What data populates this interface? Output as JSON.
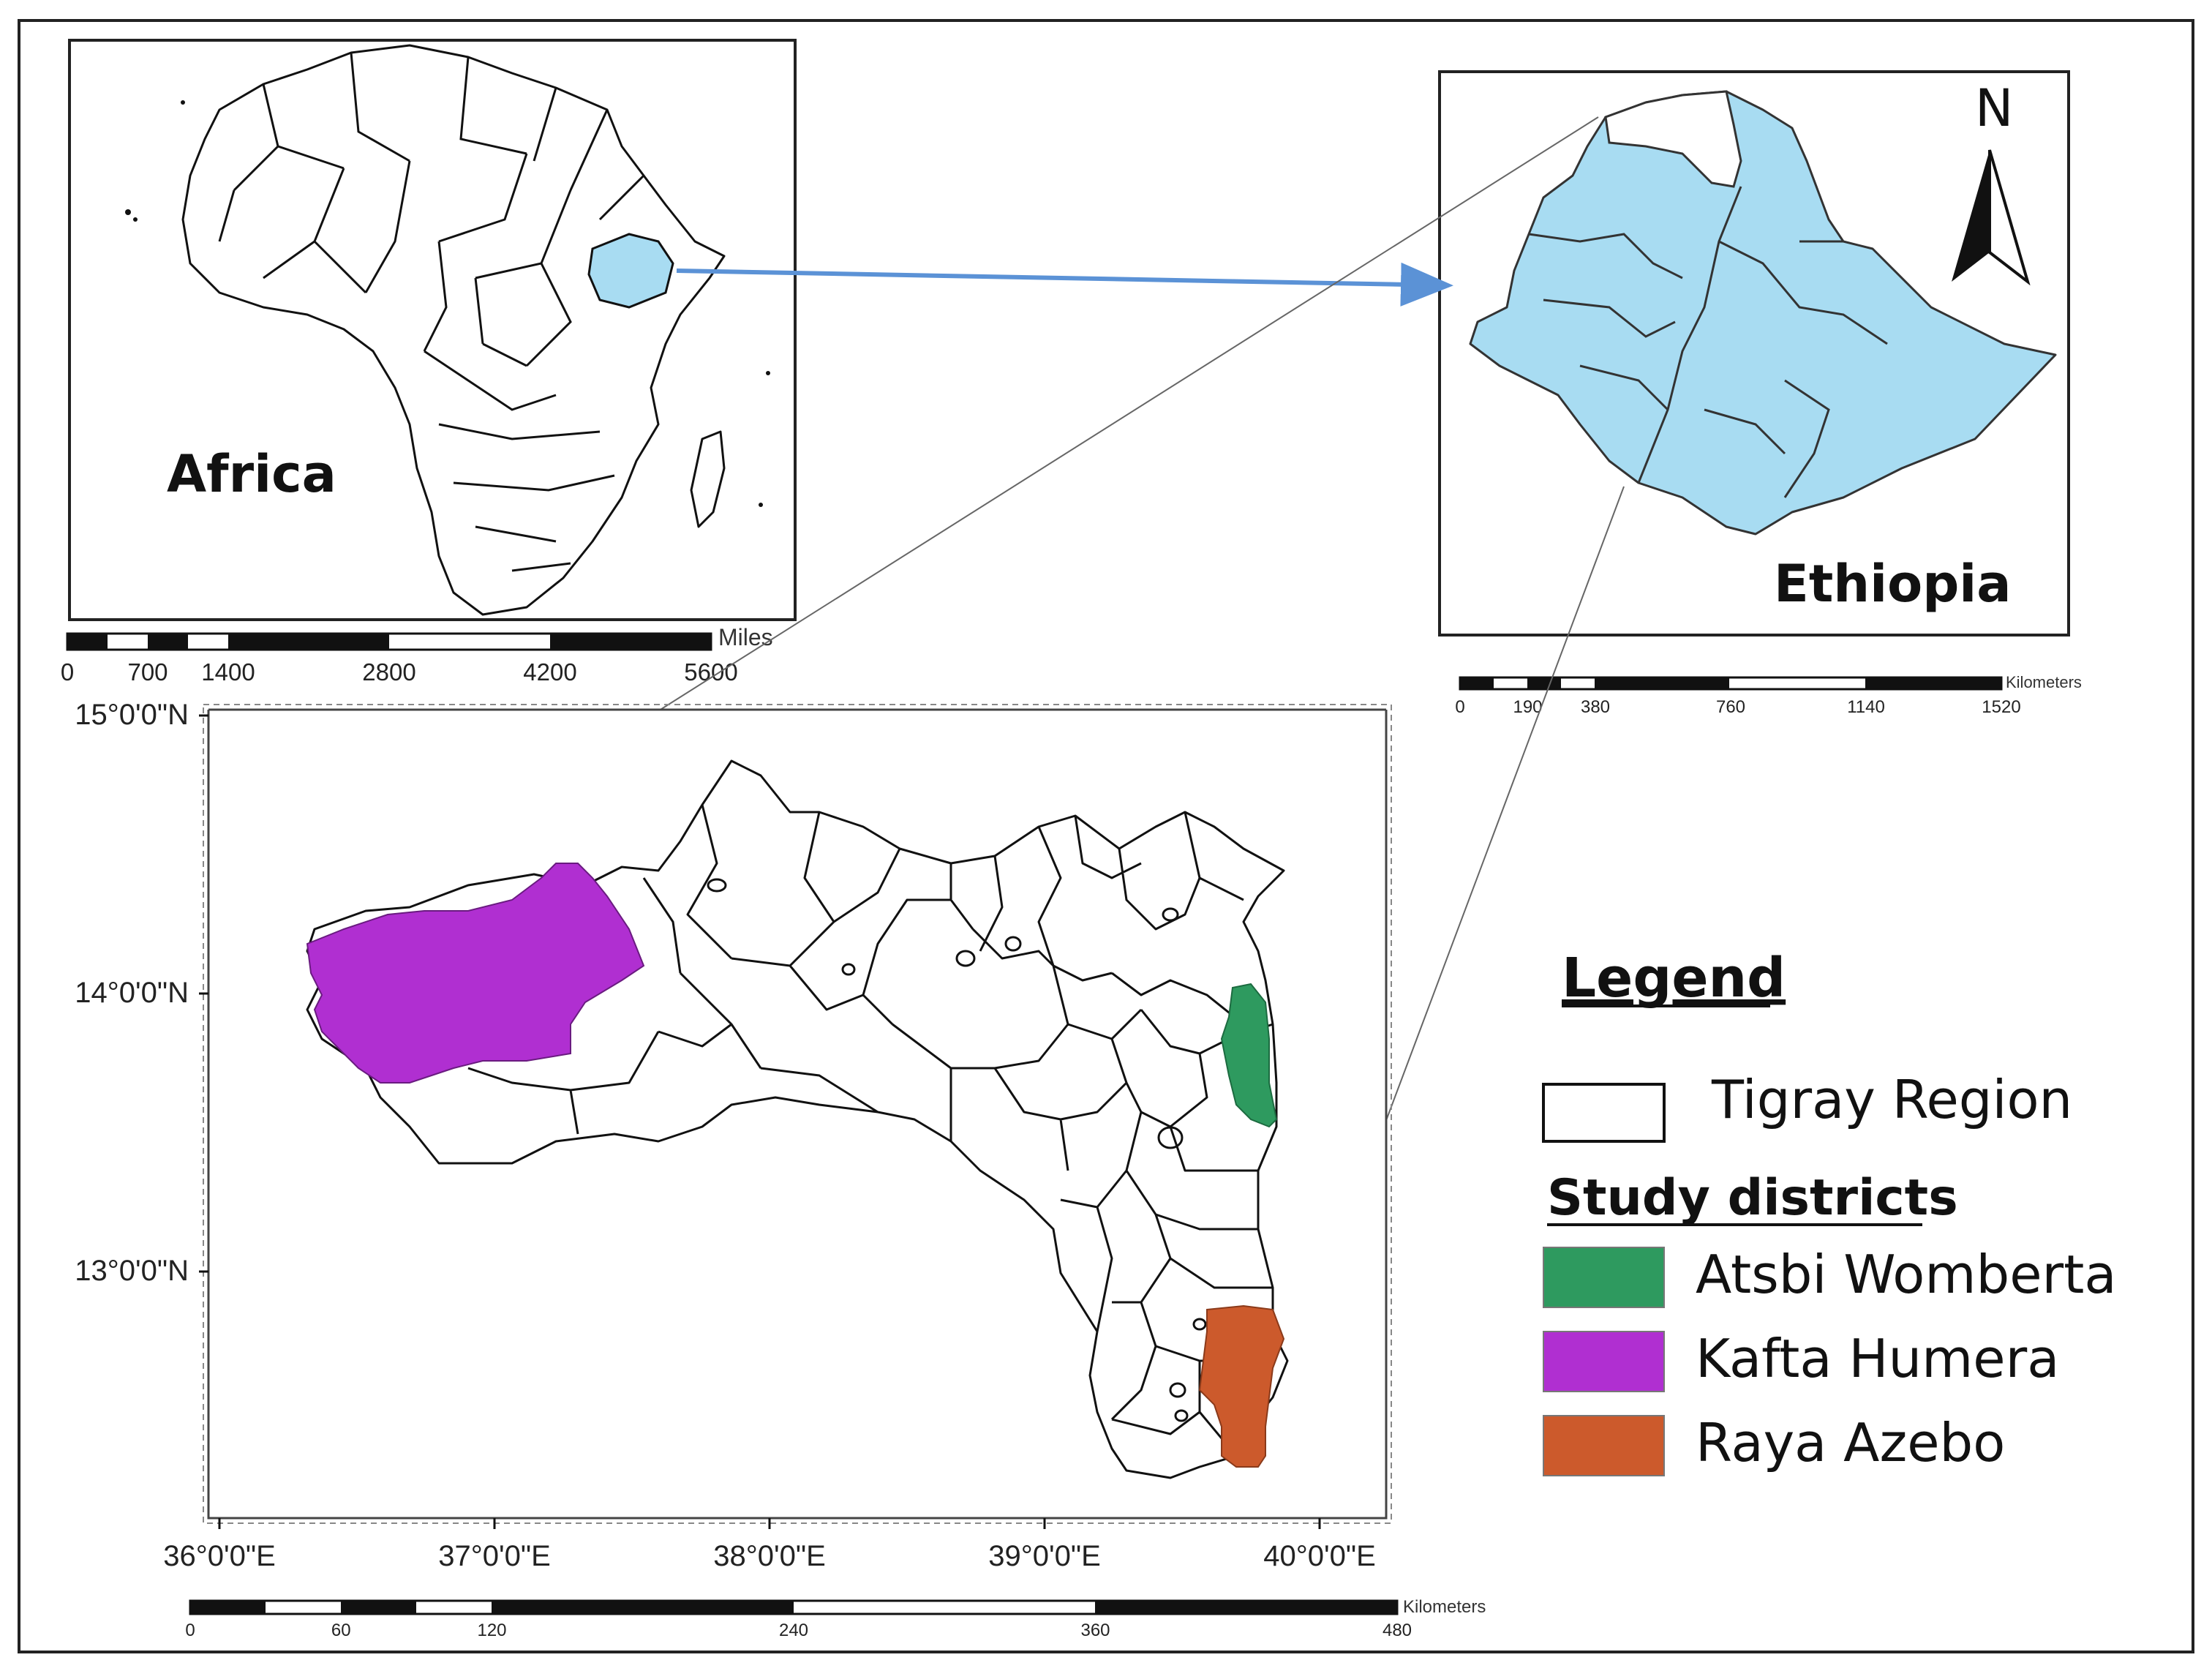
{
  "maps": {
    "africa": {
      "label": "Africa",
      "highlight_color": "#a8dcf2"
    },
    "ethiopia": {
      "label": "Ethiopia",
      "fill_color": "#a8dcf2",
      "north_label": "N"
    },
    "tigray": {
      "lat_labels": [
        "15°0'0\"N",
        "14°0'0\"N",
        "13°0'0\"N"
      ],
      "lon_labels": [
        "36°0'0\"E",
        "37°0'0\"E",
        "38°0'0\"E",
        "39°0'0\"E",
        "40°0'0\"E"
      ]
    }
  },
  "scale_bars": {
    "africa": {
      "unit": "Miles",
      "ticks": [
        "0",
        "700",
        "1400",
        "2800",
        "4200",
        "5600"
      ]
    },
    "ethiopia": {
      "unit": "Kilometers",
      "ticks": [
        "0",
        "190",
        "380",
        "760",
        "1140",
        "1520"
      ]
    },
    "tigray": {
      "unit": "Kilometers",
      "ticks": [
        "0",
        "60",
        "120",
        "240",
        "360",
        "480"
      ]
    }
  },
  "legend": {
    "title": "Legend",
    "region_label": "Tigray Region",
    "subtitle": "Study districts",
    "items": [
      {
        "label": "Atsbi Womberta",
        "color": "#2e9a5f"
      },
      {
        "label": "Kafta Humera",
        "color": "#b02fd1"
      },
      {
        "label": "Raya Azebo",
        "color": "#cc5a2c"
      }
    ]
  },
  "colors": {
    "arrow": "#5b92d6",
    "frame": "#222222"
  }
}
